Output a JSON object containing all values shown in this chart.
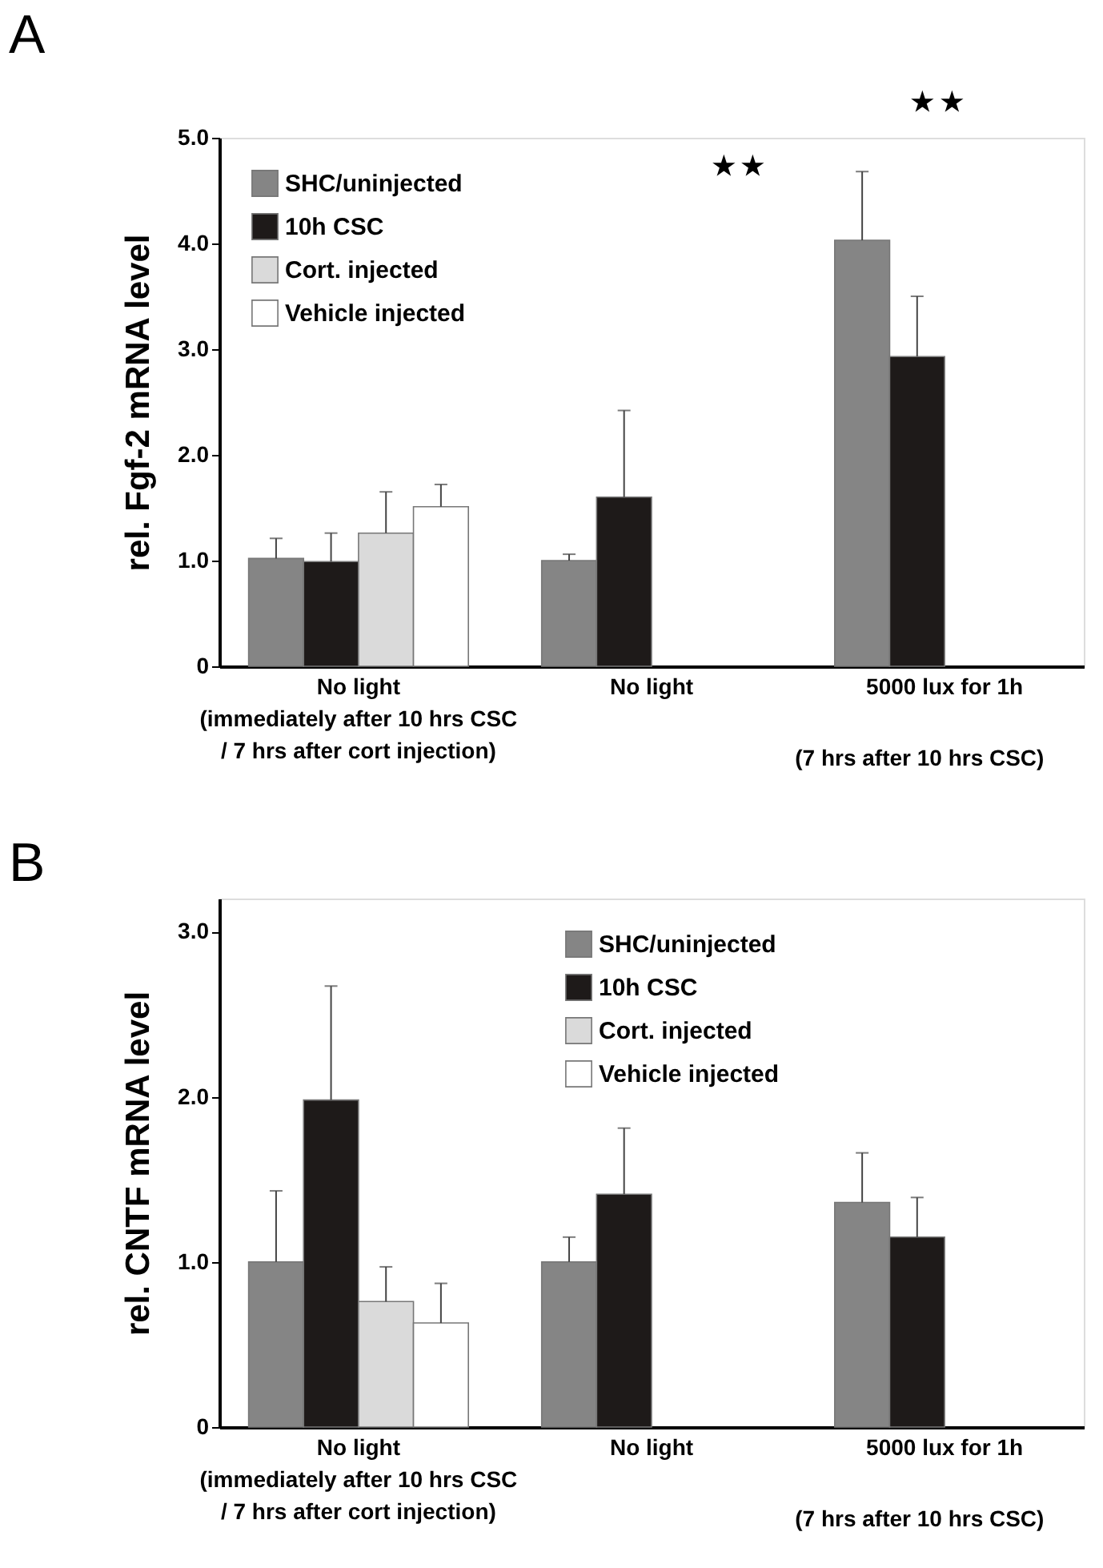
{
  "chart_data": [
    {
      "type": "bar",
      "title": "A",
      "ylabel": "rel. Fgf-2 mRNA level",
      "categories": [
        "No light\n(immediately after 10 hrs CSC\n/ 7 hrs after cort injection)",
        "No light",
        "5000 lux for 1h"
      ],
      "series": [
        {
          "name": "SHC/uninjected",
          "color": "#858585",
          "values": [
            1.02,
            1.0,
            4.03
          ],
          "errors": [
            [
              1.02,
              1.21
            ],
            [
              1.0,
              1.06
            ],
            [
              4.03,
              4.68
            ]
          ]
        },
        {
          "name": "10h CSC",
          "color": "#1e1a19",
          "values": [
            0.99,
            1.6,
            2.93
          ],
          "errors": [
            [
              0.99,
              1.26
            ],
            [
              1.6,
              2.42
            ],
            [
              2.93,
              3.5
            ]
          ]
        },
        {
          "name": "Cort. injected",
          "color": "#dadada",
          "values": [
            1.26,
            null,
            null
          ],
          "errors": [
            [
              1.26,
              1.65
            ],
            null,
            null
          ]
        },
        {
          "name": "Vehicle injected",
          "color": "#ffffff",
          "values": [
            1.51,
            null,
            null
          ],
          "errors": [
            [
              1.51,
              1.72
            ],
            null,
            null
          ]
        }
      ],
      "ylim": [
        0,
        5.0
      ],
      "yticks": [
        0,
        {
          "value": 1,
          "label": "1.0"
        },
        {
          "value": 2,
          "label": "2.0"
        },
        {
          "value": 3,
          "label": "3.0"
        },
        {
          "value": 4,
          "label": "4.0"
        },
        {
          "value": 5,
          "label": "5.0"
        }
      ],
      "annotations": [
        "★ ★",
        "★ ★",
        "(7 hrs after 10 hrs CSC)"
      ],
      "legend": "top left",
      "grid": false
    },
    {
      "type": "bar",
      "title": "B",
      "ylabel": "rel. CNTF  mRNA level",
      "categories": [
        "No light\n(immediately after 10 hrs CSC\n/ 7 hrs after cort injection)",
        "No light",
        "5000 lux for 1h"
      ],
      "series": [
        {
          "name": "SHC/uninjected",
          "color": "#858585",
          "values": [
            1.0,
            1.0,
            1.36
          ],
          "errors": [
            [
              1.0,
              1.43
            ],
            [
              1.0,
              1.15
            ],
            [
              1.36,
              1.66
            ]
          ]
        },
        {
          "name": "10h CSC",
          "color": "#1e1a19",
          "values": [
            1.98,
            1.41,
            1.15
          ],
          "errors": [
            [
              1.98,
              2.67
            ],
            [
              1.41,
              1.81
            ],
            [
              1.15,
              1.39
            ]
          ]
        },
        {
          "name": "Cort. injected",
          "color": "#dadada",
          "values": [
            0.76,
            null,
            null
          ],
          "errors": [
            [
              0.76,
              0.97
            ],
            null,
            null
          ]
        },
        {
          "name": "Vehicle injected",
          "color": "#ffffff",
          "values": [
            0.63,
            null,
            null
          ],
          "errors": [
            [
              0.63,
              0.87
            ],
            null,
            null
          ]
        }
      ],
      "ylim": [
        0,
        3.2
      ],
      "yticks": [
        0,
        {
          "value": 1,
          "label": "1.0"
        },
        {
          "value": 2,
          "label": "2.0"
        },
        {
          "value": 3,
          "label": "3.0"
        }
      ],
      "annotations": [
        "(7 hrs after 10 hrs CSC)"
      ],
      "legend": "top",
      "grid": false
    }
  ]
}
